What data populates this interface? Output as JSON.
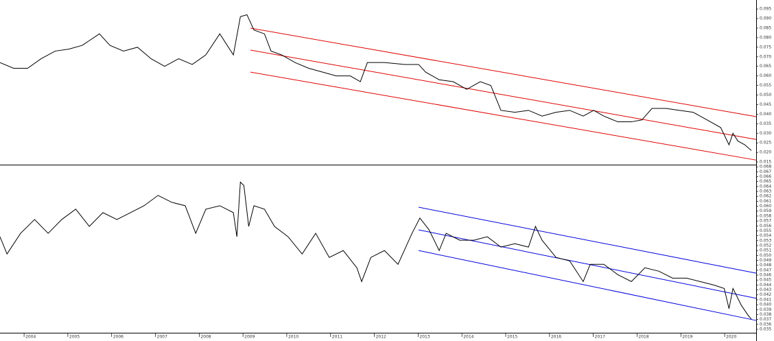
{
  "chart_data": [
    {
      "type": "line",
      "xlim": [
        2003.45,
        2020.72
      ],
      "ylim": [
        0.0136,
        0.0997
      ],
      "yticks": [
        0.095,
        {
          "value": 0.09,
          "label": "0.090"
        },
        0.085,
        {
          "value": 0.08,
          "label": "0.080"
        },
        0.075,
        {
          "value": 0.07,
          "label": "0.070"
        },
        0.065,
        {
          "value": 0.06,
          "label": "0.060"
        },
        0.055,
        {
          "value": 0.05,
          "label": "0.050"
        },
        0.045,
        {
          "value": 0.04,
          "label": "0.040"
        },
        0.035,
        {
          "value": 0.03,
          "label": "0.030"
        },
        0.025,
        {
          "value": 0.02,
          "label": "0.020"
        },
        0.015
      ],
      "x": [
        2003.45,
        2003.76,
        2004.08,
        2004.39,
        2004.71,
        2005.02,
        2005.33,
        2005.72,
        2005.96,
        2006.27,
        2006.59,
        2006.9,
        2007.21,
        2007.53,
        2007.84,
        2008.15,
        2008.47,
        2008.78,
        2008.94,
        2009.09,
        2009.25,
        2009.49,
        2009.64,
        2009.88,
        2010.19,
        2010.5,
        2010.82,
        2011.13,
        2011.45,
        2011.68,
        2011.84,
        2012.23,
        2012.7,
        2013.01,
        2013.17,
        2013.48,
        2013.8,
        2014.11,
        2014.42,
        2014.66,
        2014.89,
        2015.21,
        2015.52,
        2015.83,
        2016.15,
        2016.46,
        2016.77,
        2017.01,
        2017.24,
        2017.56,
        2017.87,
        2018.11,
        2018.34,
        2018.66,
        2018.97,
        2019.28,
        2019.6,
        2019.91,
        2020.1,
        2020.19,
        2020.3,
        2020.46,
        2020.61
      ],
      "series": [
        {
          "color": "#000000",
          "values": [
            0.067,
            0.064,
            0.064,
            0.069,
            0.073,
            0.074,
            0.076,
            0.082,
            0.076,
            0.073,
            0.075,
            0.069,
            0.065,
            0.069,
            0.066,
            0.071,
            0.082,
            0.071,
            0.091,
            0.092,
            0.084,
            0.082,
            0.073,
            0.071,
            0.067,
            0.064,
            0.062,
            0.06,
            0.06,
            0.057,
            0.067,
            0.067,
            0.066,
            0.066,
            0.062,
            0.058,
            0.057,
            0.053,
            0.057,
            0.055,
            0.042,
            0.041,
            0.042,
            0.039,
            0.041,
            0.042,
            0.039,
            0.042,
            0.039,
            0.036,
            0.036,
            0.037,
            0.043,
            0.043,
            0.042,
            0.041,
            0.037,
            0.033,
            0.024,
            0.03,
            0.026,
            0.024,
            0.021
          ]
        }
      ],
      "channels": [
        {
          "color": "#e00000",
          "x": [
            2009.17,
            2020.72
          ],
          "values": [
            0.085,
            0.0387
          ]
        },
        {
          "color": "#e00000",
          "x": [
            2009.17,
            2020.72
          ],
          "values": [
            0.0735,
            0.0268
          ]
        },
        {
          "color": "#e00000",
          "x": [
            2009.17,
            2020.72
          ],
          "values": [
            0.062,
            0.016
          ]
        }
      ]
    },
    {
      "type": "line",
      "xlim": [
        2003.45,
        2020.72
      ],
      "ylim": [
        0.0343,
        0.0683
      ],
      "xticks": [
        2004,
        2005,
        2006,
        2007,
        2008,
        2009,
        2010,
        2011,
        2012,
        2013,
        2014,
        2015,
        2016,
        2017,
        2018,
        2019,
        2020
      ],
      "yticks": [
        0.068,
        0.067,
        0.066,
        0.065,
        0.064,
        0.063,
        0.062,
        0.061,
        {
          "value": 0.06,
          "label": "0.060"
        },
        0.059,
        0.058,
        0.057,
        0.056,
        0.055,
        0.054,
        0.053,
        0.052,
        0.051,
        {
          "value": 0.05,
          "label": "0.050"
        },
        0.049,
        0.048,
        0.047,
        0.046,
        0.045,
        0.044,
        0.043,
        0.042,
        0.041,
        {
          "value": 0.04,
          "label": "0.040"
        },
        0.039,
        0.038,
        0.037,
        0.036,
        0.035
      ],
      "x": [
        2003.45,
        2003.61,
        2003.92,
        2004.24,
        2004.55,
        2004.86,
        2005.18,
        2005.49,
        2005.8,
        2006.12,
        2006.43,
        2006.74,
        2007.06,
        2007.37,
        2007.68,
        2007.92,
        2008.15,
        2008.47,
        2008.78,
        2008.86,
        2008.94,
        2009.02,
        2009.13,
        2009.25,
        2009.49,
        2009.72,
        2010.03,
        2010.35,
        2010.66,
        2010.97,
        2011.29,
        2011.6,
        2011.71,
        2011.92,
        2012.23,
        2012.54,
        2012.86,
        2013.04,
        2013.25,
        2013.48,
        2013.64,
        2013.95,
        2014.27,
        2014.58,
        2014.89,
        2015.21,
        2015.52,
        2015.68,
        2015.83,
        2016.15,
        2016.46,
        2016.77,
        2016.93,
        2017.24,
        2017.56,
        2017.87,
        2018.18,
        2018.5,
        2018.81,
        2019.13,
        2019.44,
        2019.75,
        2019.99,
        2020.1,
        2020.19,
        2020.38,
        2020.54,
        2020.61
      ],
      "series": [
        {
          "color": "#000000",
          "values": [
            0.0538,
            0.0503,
            0.0545,
            0.0573,
            0.0545,
            0.0573,
            0.0594,
            0.0559,
            0.0587,
            0.0573,
            0.0587,
            0.0601,
            0.0622,
            0.0608,
            0.0601,
            0.0545,
            0.0594,
            0.0601,
            0.0587,
            0.0538,
            0.0649,
            0.0642,
            0.0559,
            0.0601,
            0.0594,
            0.0559,
            0.0538,
            0.0503,
            0.0545,
            0.0496,
            0.051,
            0.0475,
            0.0447,
            0.0496,
            0.051,
            0.0482,
            0.0545,
            0.0576,
            0.0552,
            0.051,
            0.0545,
            0.0531,
            0.0531,
            0.0538,
            0.0517,
            0.0524,
            0.0517,
            0.0559,
            0.0531,
            0.0496,
            0.0489,
            0.0447,
            0.0482,
            0.0482,
            0.0461,
            0.0447,
            0.0475,
            0.0468,
            0.0454,
            0.0454,
            0.0447,
            0.044,
            0.0433,
            0.0392,
            0.0433,
            0.0399,
            0.0378,
            0.0371
          ]
        }
      ],
      "channels": [
        {
          "color": "#0000dd",
          "x": [
            2013.01,
            2020.72
          ],
          "values": [
            0.0598,
            0.0464
          ]
        },
        {
          "color": "#0000dd",
          "x": [
            2013.01,
            2020.72
          ],
          "values": [
            0.0552,
            0.0413
          ]
        },
        {
          "color": "#0000dd",
          "x": [
            2013.01,
            2020.72
          ],
          "values": [
            0.051,
            0.0368
          ]
        }
      ]
    }
  ]
}
